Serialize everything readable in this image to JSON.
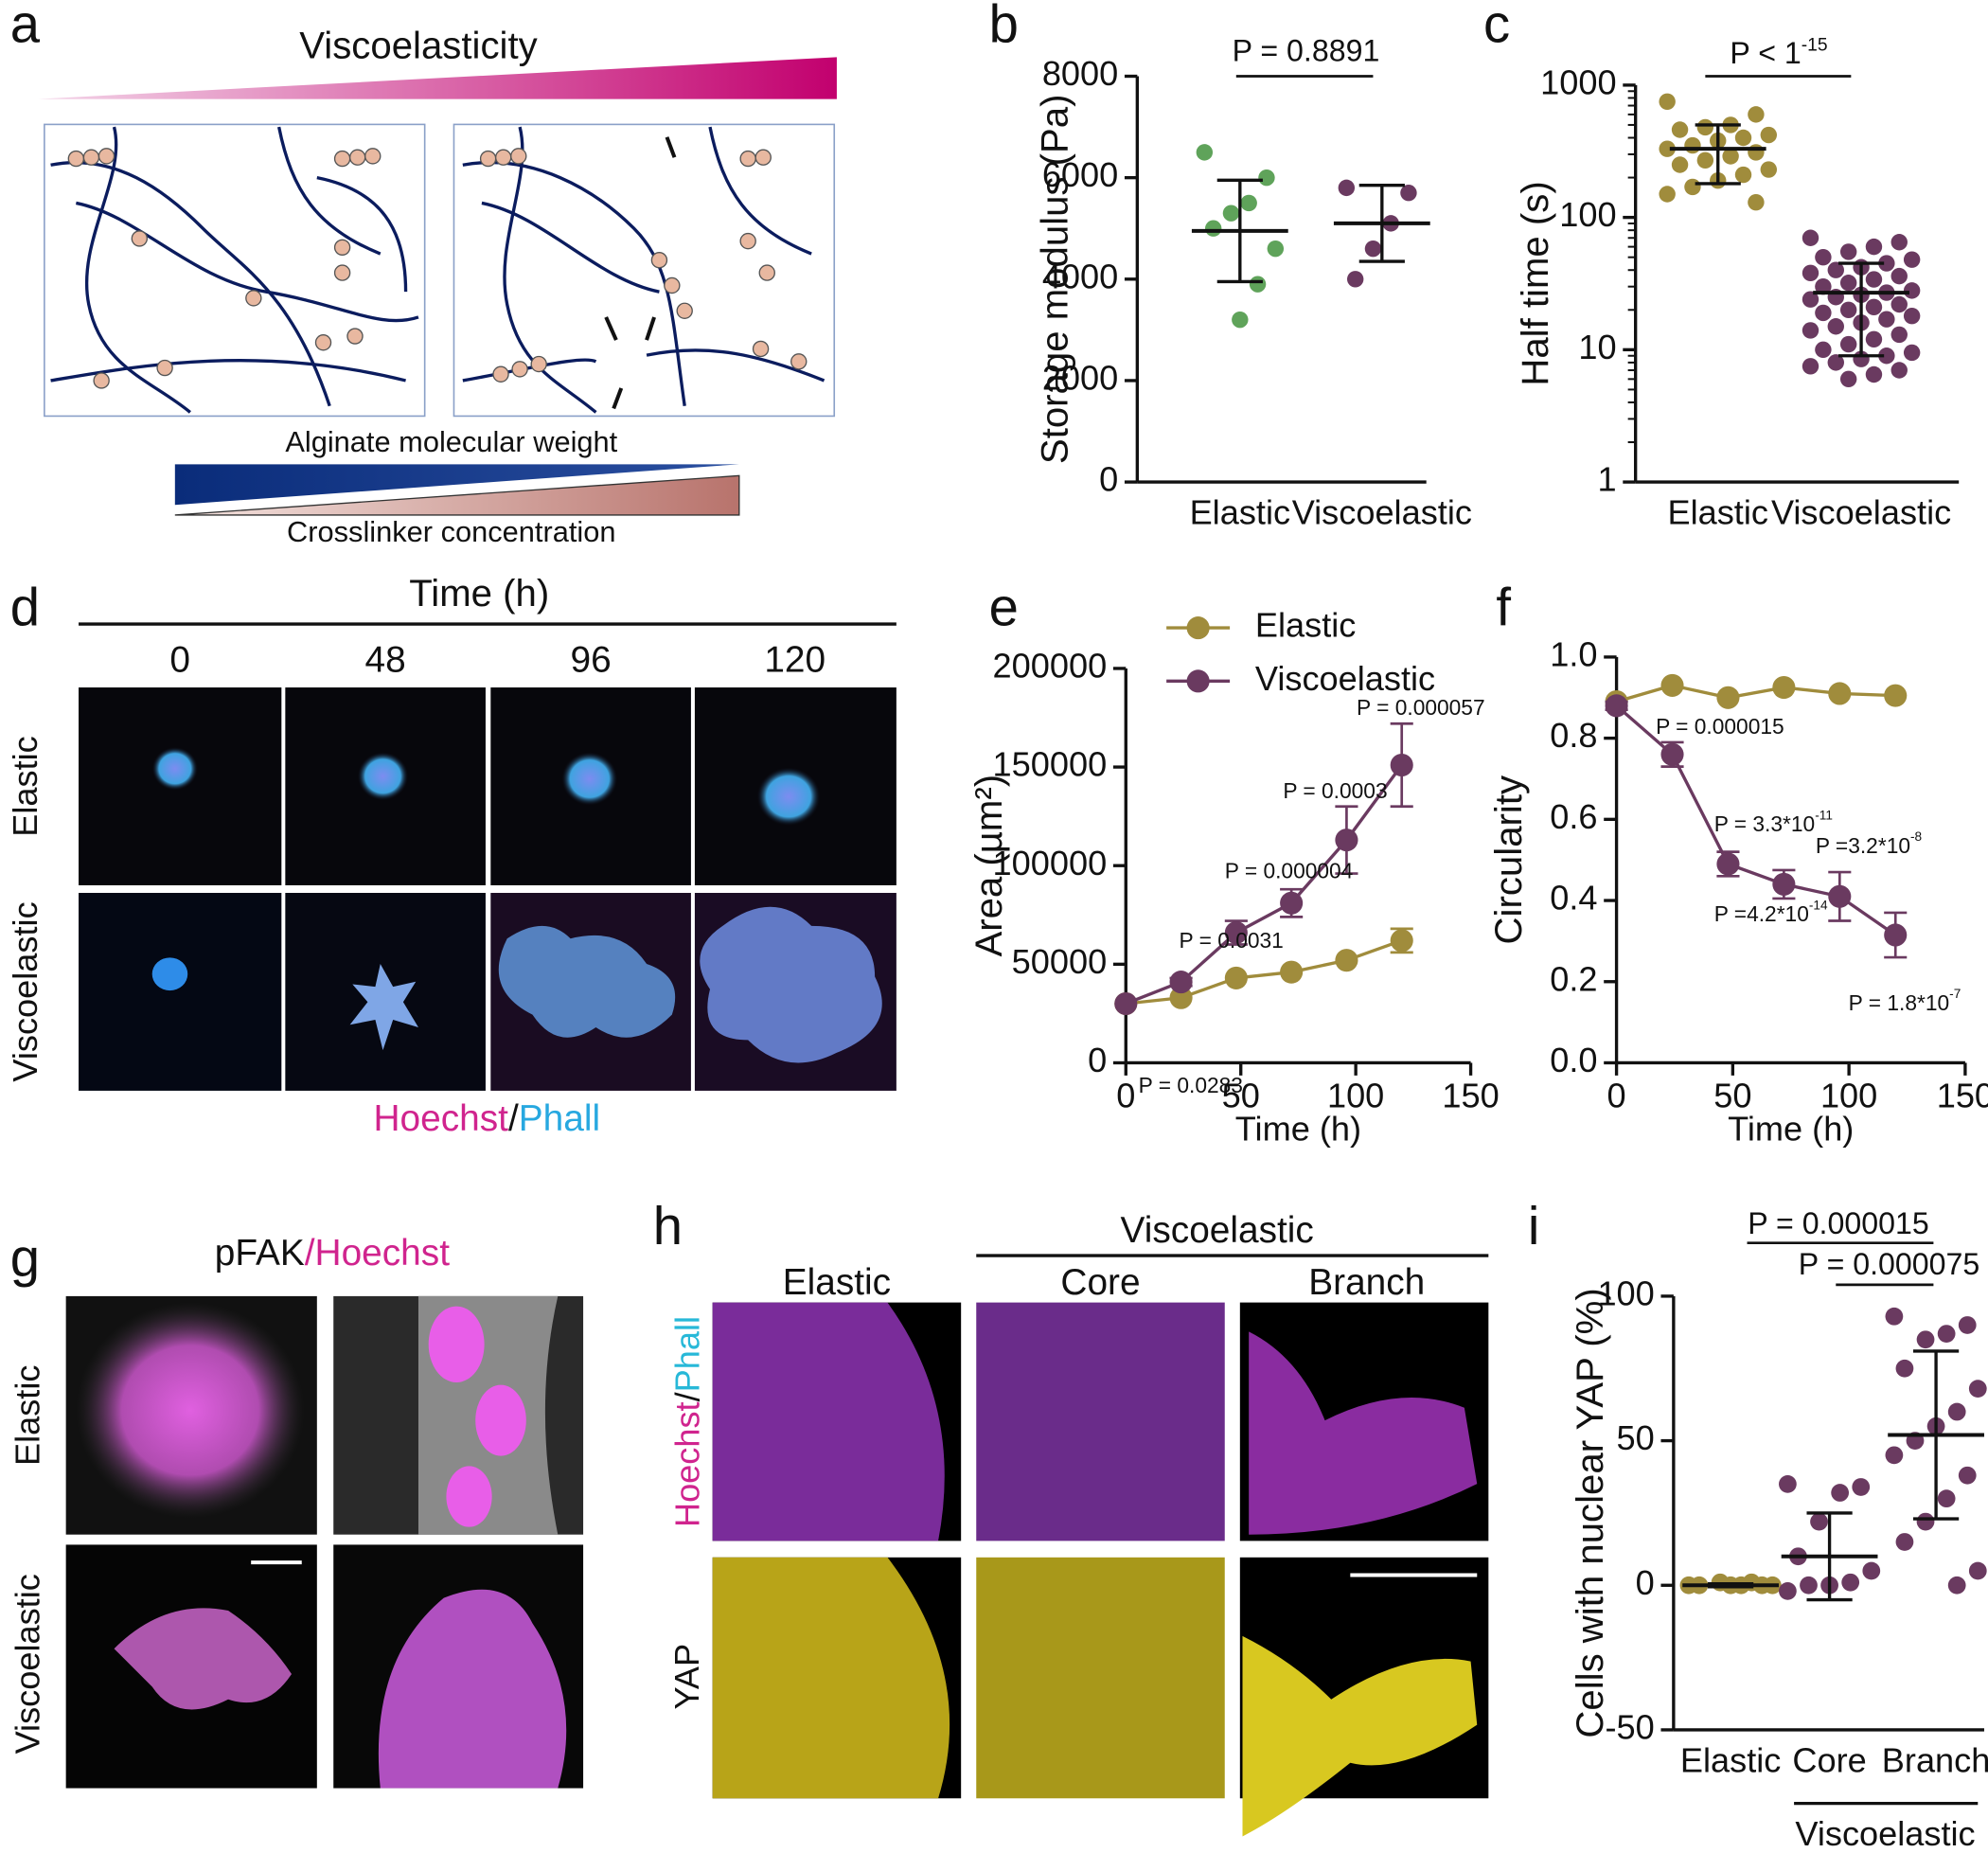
{
  "figure": {
    "panel_labels": [
      "a",
      "b",
      "c",
      "d",
      "e",
      "f",
      "g",
      "h",
      "i"
    ],
    "a": {
      "title": "Viscoelasticity",
      "bottom_label_1": "Alginate molecular weight",
      "bottom_label_2": "Crosslinker concentration"
    },
    "d": {
      "axis_title": "Time (h)",
      "times": [
        "0",
        "48",
        "96",
        "120"
      ],
      "rows": [
        "Elastic",
        "Viscoelastic"
      ],
      "stain_1": "Hoechst",
      "separator": "/",
      "stain_2": "Phall"
    },
    "g": {
      "stain_1": "pFAK",
      "stain_2": "/Hoechst",
      "rows": [
        "Elastic",
        "Viscoelastic"
      ]
    },
    "h": {
      "group": "Viscoelastic",
      "columns": [
        "Elastic",
        "Core",
        "Branch"
      ],
      "row_1_stain_1": "Hoechst",
      "row_1_separator": "/",
      "row_1_stain_2": "Phall",
      "row_2": "YAP"
    }
  },
  "chart_data": [
    {
      "type": "strip",
      "y_label": "Storage modulus (Pa)",
      "categories": [
        "Elastic",
        "Viscoelastic"
      ],
      "values": [
        [
          6500,
          6000,
          5500,
          5300,
          5000,
          4600,
          3900,
          3200
        ],
        [
          5800,
          5700,
          5100,
          4600,
          4000
        ]
      ],
      "means": [
        4950,
        5100
      ],
      "errors": [
        1000,
        750
      ],
      "colors": [
        "#5fa35a",
        "#6a3a60"
      ],
      "ylim": [
        0,
        8000
      ],
      "yticks": [
        0,
        2000,
        4000,
        6000,
        8000
      ],
      "annotations": [
        {
          "text": "P = 0.8891"
        }
      ]
    },
    {
      "type": "strip",
      "y_label": "Half time (s)",
      "log_y": true,
      "categories": [
        "Elastic",
        "Viscoelastic"
      ],
      "values": [
        [
          750,
          600,
          500,
          480,
          460,
          420,
          400,
          380,
          350,
          330,
          310,
          290,
          270,
          250,
          230,
          210,
          190,
          170,
          150,
          130
        ],
        [
          70,
          65,
          60,
          55,
          50,
          48,
          45,
          42,
          40,
          38,
          36,
          34,
          32,
          30,
          28,
          27,
          26,
          25,
          24,
          22,
          21,
          20,
          19,
          18,
          17,
          16,
          15,
          14,
          13,
          12,
          11,
          10,
          9.5,
          9,
          8.5,
          8,
          7.5,
          7,
          6.5,
          6
        ]
      ],
      "means": [
        330,
        27
      ],
      "error_ranges": [
        [
          180,
          500
        ],
        [
          9,
          45
        ]
      ],
      "colors": [
        "#a08c3c",
        "#6a3a60"
      ],
      "ylim": [
        1,
        1000
      ],
      "yticks": [
        1,
        10,
        100,
        1000
      ],
      "annotations": [
        {
          "text": "P < 1",
          "sup": "-15"
        }
      ]
    },
    {
      "type": "line",
      "x_label": "Time (h)",
      "y_label": "Area (µm²)",
      "x": [
        0,
        24,
        48,
        72,
        96,
        120
      ],
      "xlim": [
        0,
        150
      ],
      "xticks": [
        0,
        50,
        100,
        150
      ],
      "ylim": [
        0,
        200000
      ],
      "yticks": [
        0,
        50000,
        100000,
        150000,
        200000
      ],
      "legend": "top",
      "series": [
        {
          "name": "Elastic",
          "color": "#a08c3c",
          "values": [
            30000,
            33000,
            43000,
            46000,
            52000,
            62000
          ],
          "errors": [
            0,
            0,
            0,
            0,
            0,
            6000
          ]
        },
        {
          "name": "Viscoelastic",
          "color": "#6a3a60",
          "values": [
            30000,
            41000,
            66000,
            81000,
            113000,
            151000
          ],
          "errors": [
            0,
            2000,
            6000,
            7000,
            17000,
            21000
          ]
        }
      ],
      "annotations": [
        {
          "text": "P = 0.0283"
        },
        {
          "text": "P = 0.0031"
        },
        {
          "text": "P = 0.000004"
        },
        {
          "text": "P = 0.0003"
        },
        {
          "text": "P = 0.000057"
        }
      ]
    },
    {
      "type": "line",
      "x_label": "Time (h)",
      "y_label": "Circularity",
      "x": [
        0,
        24,
        48,
        72,
        96,
        120
      ],
      "xlim": [
        0,
        150
      ],
      "xticks": [
        0,
        50,
        100,
        150
      ],
      "ylim": [
        0,
        1
      ],
      "yticks": [
        {
          "value": 0,
          "label": "0.0"
        },
        0.2,
        0.4,
        0.6,
        0.8,
        {
          "value": 1,
          "label": "1.0"
        }
      ],
      "series": [
        {
          "color": "#a08c3c",
          "values": [
            0.89,
            0.93,
            0.9,
            0.925,
            0.91,
            0.905
          ],
          "errors": [
            0,
            0,
            0,
            0,
            0,
            0
          ]
        },
        {
          "color": "#6a3a60",
          "values": [
            0.88,
            0.76,
            0.49,
            0.44,
            0.41,
            0.315
          ],
          "errors": [
            0.01,
            0.03,
            0.03,
            0.035,
            0.06,
            0.055
          ]
        }
      ],
      "annotations": [
        {
          "text": "P = 0.000015"
        },
        {
          "text": "P = 3.3*10",
          "sup": "-11"
        },
        {
          "text": "P =3.2*10",
          "sup": "-8"
        },
        {
          "text": "P =4.2*10",
          "sup": "-14"
        },
        {
          "text": "P = 1.8*10",
          "sup": "-7"
        }
      ]
    },
    {
      "type": "strip",
      "y_label": "Cells with nuclear YAP (%)",
      "categories": [
        "Elastic",
        "Core",
        "Branch"
      ],
      "group_label": "Viscoelastic",
      "values": [
        [
          0,
          0,
          0,
          1,
          0,
          0,
          1,
          0
        ],
        [
          35,
          34,
          32,
          22,
          10,
          5,
          1,
          0,
          0,
          -2
        ],
        [
          93,
          90,
          87,
          85,
          75,
          68,
          60,
          55,
          50,
          45,
          38,
          30,
          22,
          15,
          5,
          0
        ]
      ],
      "means": [
        0,
        10,
        52
      ],
      "errors": [
        0.5,
        15,
        29
      ],
      "colors": [
        "#a08c3c",
        "#6a3a60",
        "#6a3a60"
      ],
      "ylim": [
        -50,
        100
      ],
      "yticks": [
        -50,
        0,
        50,
        100
      ],
      "annotations": [
        {
          "text": "P = 0.000015"
        },
        {
          "text": "P = 0.000075"
        }
      ]
    }
  ]
}
